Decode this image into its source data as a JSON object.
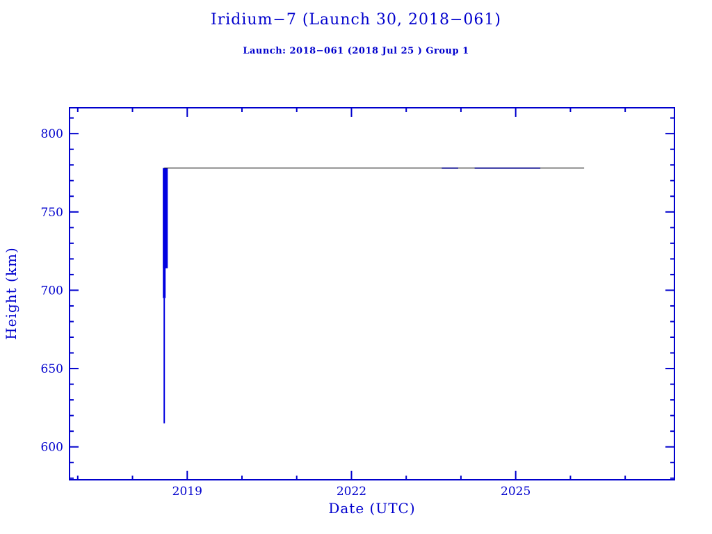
{
  "chart_data": {
    "type": "line",
    "title": "Iridium−7 (Launch 30, 2018−061)",
    "subtitle": "Launch: 2018−061  (2018 Jul 25 )  Group 1",
    "xlabel": "Date (UTC)",
    "ylabel": "Height (km)",
    "xlim": [
      2016.85,
      2027.9
    ],
    "ylim": [
      579,
      816.5
    ],
    "x_major_ticks": [
      2019,
      2022,
      2025
    ],
    "x_minor_step": 1,
    "y_major_ticks": [
      600,
      650,
      700,
      750,
      800
    ],
    "y_minor_step": 10,
    "grid": false,
    "legend": false,
    "axis_color": "#0000cd",
    "text_color": "#0000cd",
    "series": [
      {
        "name": "launch-injection-line",
        "type": "vline",
        "x": 2018.58,
        "y_from": 615,
        "y_to": 695,
        "color": "#0000e0",
        "stroke_width": 2
      },
      {
        "name": "orbit-raise-line",
        "type": "vline",
        "x": 2018.58,
        "y_from": 695,
        "y_to": 778,
        "color": "#0000e0",
        "stroke_width": 4
      },
      {
        "name": "orbit-raise-thick-line",
        "type": "vline",
        "x": 2018.6,
        "y_from": 714,
        "y_to": 778,
        "color": "#0000e0",
        "stroke_width": 7
      },
      {
        "name": "operational-altitude-line",
        "type": "hline",
        "y": 778,
        "x_from": 2018.58,
        "x_to": 2026.25,
        "color": "#000000",
        "stroke_width": 1
      },
      {
        "name": "dense-data-segment-1",
        "type": "hline",
        "y": 778,
        "x_from": 2023.65,
        "x_to": 2023.95,
        "color": "#222299",
        "stroke_width": 2
      },
      {
        "name": "dense-data-segment-2",
        "type": "hline",
        "y": 778,
        "x_from": 2024.25,
        "x_to": 2025.45,
        "color": "#222299",
        "stroke_width": 2
      }
    ]
  }
}
